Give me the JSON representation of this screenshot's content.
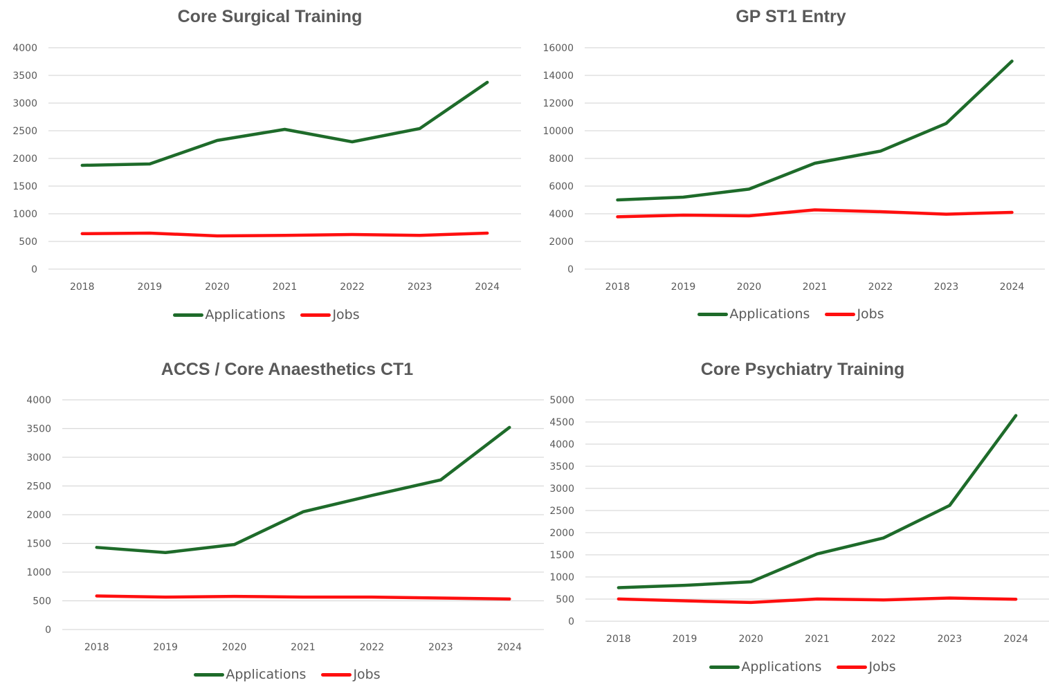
{
  "colors": {
    "applications": "#1e6b2a",
    "jobs": "#ff0f0f",
    "grid": "#d9d9d9",
    "text": "#595959"
  },
  "chart_data": [
    {
      "type": "line",
      "title": "Core Surgical Training",
      "categories": [
        "2018",
        "2019",
        "2020",
        "2021",
        "2022",
        "2023",
        "2024"
      ],
      "ylim": [
        0,
        4000
      ],
      "yticks": [
        0,
        500,
        1000,
        1500,
        2000,
        2500,
        3000,
        3500,
        4000
      ],
      "grid": true,
      "legend": "bottom",
      "series": [
        {
          "name": "Applications",
          "values": [
            1875,
            1900,
            2325,
            2525,
            2300,
            2540,
            3375
          ]
        },
        {
          "name": "Jobs",
          "values": [
            640,
            650,
            600,
            610,
            625,
            610,
            650
          ]
        }
      ]
    },
    {
      "type": "line",
      "title": "GP ST1 Entry",
      "categories": [
        "2018",
        "2019",
        "2020",
        "2021",
        "2022",
        "2023",
        "2024"
      ],
      "ylim": [
        0,
        16000
      ],
      "yticks": [
        0,
        2000,
        4000,
        6000,
        8000,
        10000,
        12000,
        14000,
        16000
      ],
      "grid": true,
      "legend": "bottom",
      "series": [
        {
          "name": "Applications",
          "values": [
            5000,
            5200,
            5780,
            7650,
            8530,
            10530,
            15030
          ]
        },
        {
          "name": "Jobs",
          "values": [
            3780,
            3900,
            3850,
            4280,
            4150,
            3970,
            4100
          ]
        }
      ]
    },
    {
      "type": "line",
      "title": "ACCS / Core Anaesthetics CT1",
      "categories": [
        "2018",
        "2019",
        "2020",
        "2021",
        "2022",
        "2023",
        "2024"
      ],
      "ylim": [
        0,
        4000
      ],
      "yticks": [
        0,
        500,
        1000,
        1500,
        2000,
        2500,
        3000,
        3500,
        4000
      ],
      "grid": true,
      "legend": "bottom",
      "series": [
        {
          "name": "Applications",
          "values": [
            1430,
            1340,
            1480,
            2050,
            2335,
            2605,
            3520
          ]
        },
        {
          "name": "Jobs",
          "values": [
            585,
            565,
            577,
            565,
            565,
            548,
            532
          ]
        }
      ]
    },
    {
      "type": "line",
      "title": "Core Psychiatry Training",
      "categories": [
        "2018",
        "2019",
        "2020",
        "2021",
        "2022",
        "2023",
        "2024"
      ],
      "ylim": [
        0,
        5000
      ],
      "yticks": [
        0,
        500,
        1000,
        1500,
        2000,
        2500,
        3000,
        3500,
        4000,
        4500,
        5000
      ],
      "grid": true,
      "legend": "bottom",
      "series": [
        {
          "name": "Applications",
          "values": [
            758,
            810,
            890,
            1520,
            1880,
            2615,
            4645
          ]
        },
        {
          "name": "Jobs",
          "values": [
            502,
            460,
            424,
            502,
            481,
            523,
            497
          ]
        }
      ]
    }
  ]
}
